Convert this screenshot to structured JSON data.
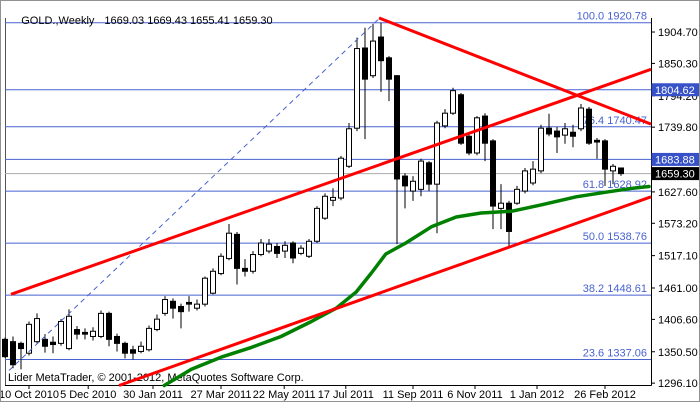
{
  "window": {
    "title_symbol": "GOLD.,Weekly",
    "title_values": "1669.03 1669.43 1655.41 1659.30",
    "copyright": "Lider MetaTrader, © 2001-2012, MetaQuotes Software Corp."
  },
  "colors": {
    "fib_blue": "#4862D0",
    "badge_blue": "#3752C8",
    "badge_black": "#000000",
    "trend_red": "#FF0000",
    "ma_green": "#008000",
    "current_price_gray": "#A9A9A9",
    "candle_up": "#FFFFFF",
    "candle_down": "#000000"
  },
  "chart_data": {
    "type": "candlestick",
    "symbol": "GOLD",
    "timeframe": "Weekly",
    "last_bar": {
      "open": 1669.03,
      "high": 1669.43,
      "low": 1655.41,
      "close": 1659.3
    },
    "y_axis": {
      "visible_price_range": [
        1292,
        1929
      ],
      "ticks": [
        "1904.70",
        "1850.30",
        "1794.20",
        "1739.80",
        "1627.60",
        "1573.20",
        "1517.10",
        "1461.00",
        "1406.60",
        "1350.50",
        "1296.10"
      ]
    },
    "x_axis": {
      "labels": [
        {
          "text": "10 Oct 2010",
          "i": 3
        },
        {
          "text": "5 Dec 2010",
          "i": 10.4
        },
        {
          "text": "30 Jan 2011",
          "i": 18.5
        },
        {
          "text": "27 Mar 2011",
          "i": 27
        },
        {
          "text": "22 May 2011",
          "i": 34.9
        },
        {
          "text": "17 Jul 2011",
          "i": 42.6
        },
        {
          "text": "11 Sep 2011",
          "i": 51
        },
        {
          "text": "6 Nov 2011",
          "i": 58.75
        },
        {
          "text": "1 Jan 2012",
          "i": 66.5
        },
        {
          "text": "26 Feb 2012",
          "i": 75
        }
      ]
    },
    "fibonacci": [
      {
        "level": "100.0",
        "price": "1920.78"
      },
      {
        "level": "76.4",
        "price": "1740.47"
      },
      {
        "level": "61.8",
        "price": "1628.92"
      },
      {
        "level": "50.0",
        "price": "1538.76"
      },
      {
        "level": "38.2",
        "price": "1448.61"
      },
      {
        "level": "23.6",
        "price": "1337.06"
      }
    ],
    "horizontal_lines": [
      {
        "price": 1804.62,
        "color": "#4862D0"
      },
      {
        "price": 1683.88,
        "color": "#4862D0"
      },
      {
        "price": 1659.3,
        "color": "#A9A9A9"
      }
    ],
    "price_badges": [
      {
        "value": "1804.62",
        "bg": "#3752C8"
      },
      {
        "value": "1683.88",
        "bg": "#3752C8"
      },
      {
        "value": "1659.30",
        "bg": "#000000"
      }
    ],
    "trend_lines": [
      {
        "name": "dashed-guideline",
        "from": [
          0.5,
          1318
        ],
        "to": [
          47,
          1931
        ],
        "style": "dashed",
        "color": "#4862D0",
        "width": 1
      },
      {
        "name": "ascending-channel-upper",
        "from": [
          0.75,
          1450
        ],
        "to": [
          80.75,
          1840
        ],
        "style": "solid"
      },
      {
        "name": "ascending-channel-lower",
        "from": [
          14.25,
          1292
        ],
        "to": [
          80.75,
          1619
        ],
        "style": "solid"
      },
      {
        "name": "descending-trendline",
        "from": [
          46.75,
          1929
        ],
        "to": [
          80.75,
          1745
        ],
        "style": "solid"
      }
    ],
    "moving_average": {
      "points": [
        [
          19.9,
          1292
        ],
        [
          23.3,
          1320
        ],
        [
          27,
          1341
        ],
        [
          30.8,
          1358
        ],
        [
          34.5,
          1377
        ],
        [
          38.3,
          1403
        ],
        [
          41.4,
          1426
        ],
        [
          43.9,
          1454
        ],
        [
          45.8,
          1487
        ],
        [
          47.6,
          1520
        ],
        [
          50.1,
          1539
        ],
        [
          53.3,
          1567
        ],
        [
          56.4,
          1584
        ],
        [
          59.5,
          1591
        ],
        [
          63.3,
          1594
        ],
        [
          67,
          1605
        ],
        [
          71.4,
          1619
        ],
        [
          75.1,
          1627
        ],
        [
          78.5,
          1634
        ],
        [
          80.5,
          1637
        ]
      ]
    },
    "candles": [
      [
        1372,
        1375,
        1340,
        1342
      ],
      [
        1368,
        1377,
        1322,
        1328
      ],
      [
        1365,
        1368,
        1320,
        1356
      ],
      [
        1348,
        1403,
        1344,
        1398
      ],
      [
        1368,
        1417,
        1365,
        1408
      ],
      [
        1372,
        1381,
        1349,
        1360
      ],
      [
        1367,
        1377,
        1348,
        1363
      ],
      [
        1365,
        1407,
        1361,
        1403
      ],
      [
        1356,
        1424,
        1353,
        1412
      ],
      [
        1389,
        1395,
        1372,
        1381
      ],
      [
        1384,
        1391,
        1372,
        1381
      ],
      [
        1377,
        1393,
        1370,
        1386
      ],
      [
        1377,
        1422,
        1374,
        1417
      ],
      [
        1417,
        1420,
        1360,
        1372
      ],
      [
        1377,
        1382,
        1351,
        1365
      ],
      [
        1365,
        1368,
        1339,
        1348
      ],
      [
        1354,
        1361,
        1337,
        1348
      ],
      [
        1351,
        1368,
        1348,
        1360
      ],
      [
        1354,
        1396,
        1351,
        1391
      ],
      [
        1389,
        1415,
        1386,
        1407
      ],
      [
        1417,
        1447,
        1413,
        1441
      ],
      [
        1438,
        1443,
        1408,
        1426
      ],
      [
        1429,
        1434,
        1391,
        1420
      ],
      [
        1436,
        1447,
        1420,
        1433
      ],
      [
        1426,
        1441,
        1422,
        1433
      ],
      [
        1433,
        1481,
        1429,
        1478
      ],
      [
        1452,
        1495,
        1450,
        1490
      ],
      [
        1486,
        1521,
        1483,
        1516
      ],
      [
        1512,
        1572,
        1509,
        1556
      ],
      [
        1554,
        1558,
        1467,
        1495
      ],
      [
        1495,
        1511,
        1481,
        1490
      ],
      [
        1490,
        1525,
        1486,
        1519
      ],
      [
        1519,
        1546,
        1516,
        1539
      ],
      [
        1525,
        1546,
        1521,
        1537
      ],
      [
        1533,
        1539,
        1513,
        1521
      ],
      [
        1525,
        1542,
        1513,
        1535
      ],
      [
        1539,
        1542,
        1504,
        1513
      ],
      [
        1521,
        1535,
        1518,
        1530
      ],
      [
        1516,
        1546,
        1513,
        1542
      ],
      [
        1542,
        1603,
        1539,
        1599
      ],
      [
        1582,
        1625,
        1579,
        1620
      ],
      [
        1613,
        1634,
        1603,
        1618
      ],
      [
        1617,
        1690,
        1613,
        1686
      ],
      [
        1672,
        1747,
        1669,
        1737
      ],
      [
        1738,
        1895,
        1733,
        1876
      ],
      [
        1877,
        1912,
        1719,
        1823
      ],
      [
        1829,
        1919,
        1825,
        1889
      ],
      [
        1896,
        1920.78,
        1801,
        1855
      ],
      [
        1860,
        1863,
        1785,
        1823
      ],
      [
        1829,
        1830,
        1537,
        1650
      ],
      [
        1655,
        1660,
        1599,
        1638
      ],
      [
        1629,
        1655,
        1612,
        1646
      ],
      [
        1632,
        1685,
        1620,
        1681
      ],
      [
        1678,
        1681,
        1629,
        1641
      ],
      [
        1641,
        1751,
        1556,
        1747
      ],
      [
        1742,
        1771,
        1738,
        1764
      ],
      [
        1764,
        1808,
        1761,
        1803
      ],
      [
        1796,
        1799,
        1709,
        1712
      ],
      [
        1724,
        1730,
        1691,
        1695
      ],
      [
        1695,
        1759,
        1691,
        1756
      ],
      [
        1759,
        1764,
        1681,
        1712
      ],
      [
        1716,
        1719,
        1563,
        1603
      ],
      [
        1599,
        1641,
        1563,
        1608
      ],
      [
        1608,
        1612,
        1530,
        1559
      ],
      [
        1608,
        1638,
        1605,
        1632
      ],
      [
        1629,
        1669,
        1625,
        1664
      ],
      [
        1643,
        1681,
        1639,
        1667
      ],
      [
        1664,
        1744,
        1660,
        1738
      ],
      [
        1738,
        1763,
        1724,
        1728
      ],
      [
        1733,
        1740,
        1695,
        1723
      ],
      [
        1726,
        1747,
        1711,
        1737
      ],
      [
        1731,
        1744,
        1705,
        1724
      ],
      [
        1737,
        1780,
        1733,
        1773
      ],
      [
        1771,
        1775,
        1709,
        1712
      ],
      [
        1717,
        1721,
        1685,
        1714
      ],
      [
        1716,
        1719,
        1638,
        1667
      ],
      [
        1664,
        1676,
        1641,
        1672
      ],
      [
        1669.03,
        1669.43,
        1655.41,
        1659.3
      ]
    ]
  }
}
